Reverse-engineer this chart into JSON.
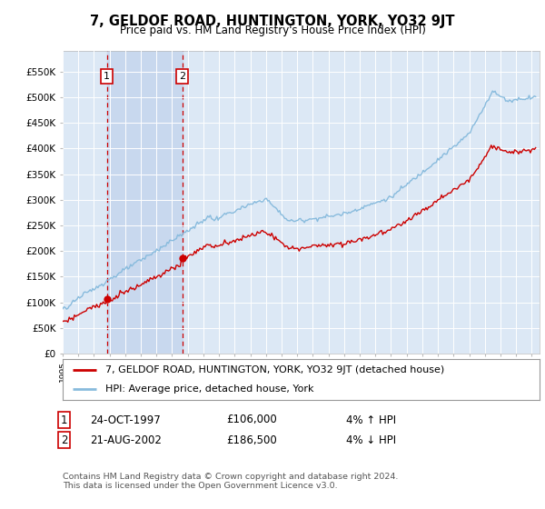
{
  "title": "7, GELDOF ROAD, HUNTINGTON, YORK, YO32 9JT",
  "subtitle": "Price paid vs. HM Land Registry's House Price Index (HPI)",
  "ylabel_ticks": [
    "£0",
    "£50K",
    "£100K",
    "£150K",
    "£200K",
    "£250K",
    "£300K",
    "£350K",
    "£400K",
    "£450K",
    "£500K",
    "£550K"
  ],
  "ytick_values": [
    0,
    50000,
    100000,
    150000,
    200000,
    250000,
    300000,
    350000,
    400000,
    450000,
    500000,
    550000
  ],
  "xlim_start": 1995.0,
  "xlim_end": 2025.5,
  "ylim": [
    0,
    590000
  ],
  "purchase1_date": 1997.82,
  "purchase1_price": 106000,
  "purchase2_date": 2002.64,
  "purchase2_price": 186500,
  "legend_line1": "7, GELDOF ROAD, HUNTINGTON, YORK, YO32 9JT (detached house)",
  "legend_line2": "HPI: Average price, detached house, York",
  "table_row1": [
    "1",
    "24-OCT-1997",
    "£106,000",
    "4% ↑ HPI"
  ],
  "table_row2": [
    "2",
    "21-AUG-2002",
    "£186,500",
    "4% ↓ HPI"
  ],
  "footer": "Contains HM Land Registry data © Crown copyright and database right 2024.\nThis data is licensed under the Open Government Licence v3.0.",
  "line_color_property": "#cc0000",
  "line_color_hpi": "#88bbdd",
  "background_plot": "#dce8f5",
  "background_fig": "#ffffff",
  "shaded_region_color": "#c8d8ee",
  "grid_color": "#ffffff"
}
